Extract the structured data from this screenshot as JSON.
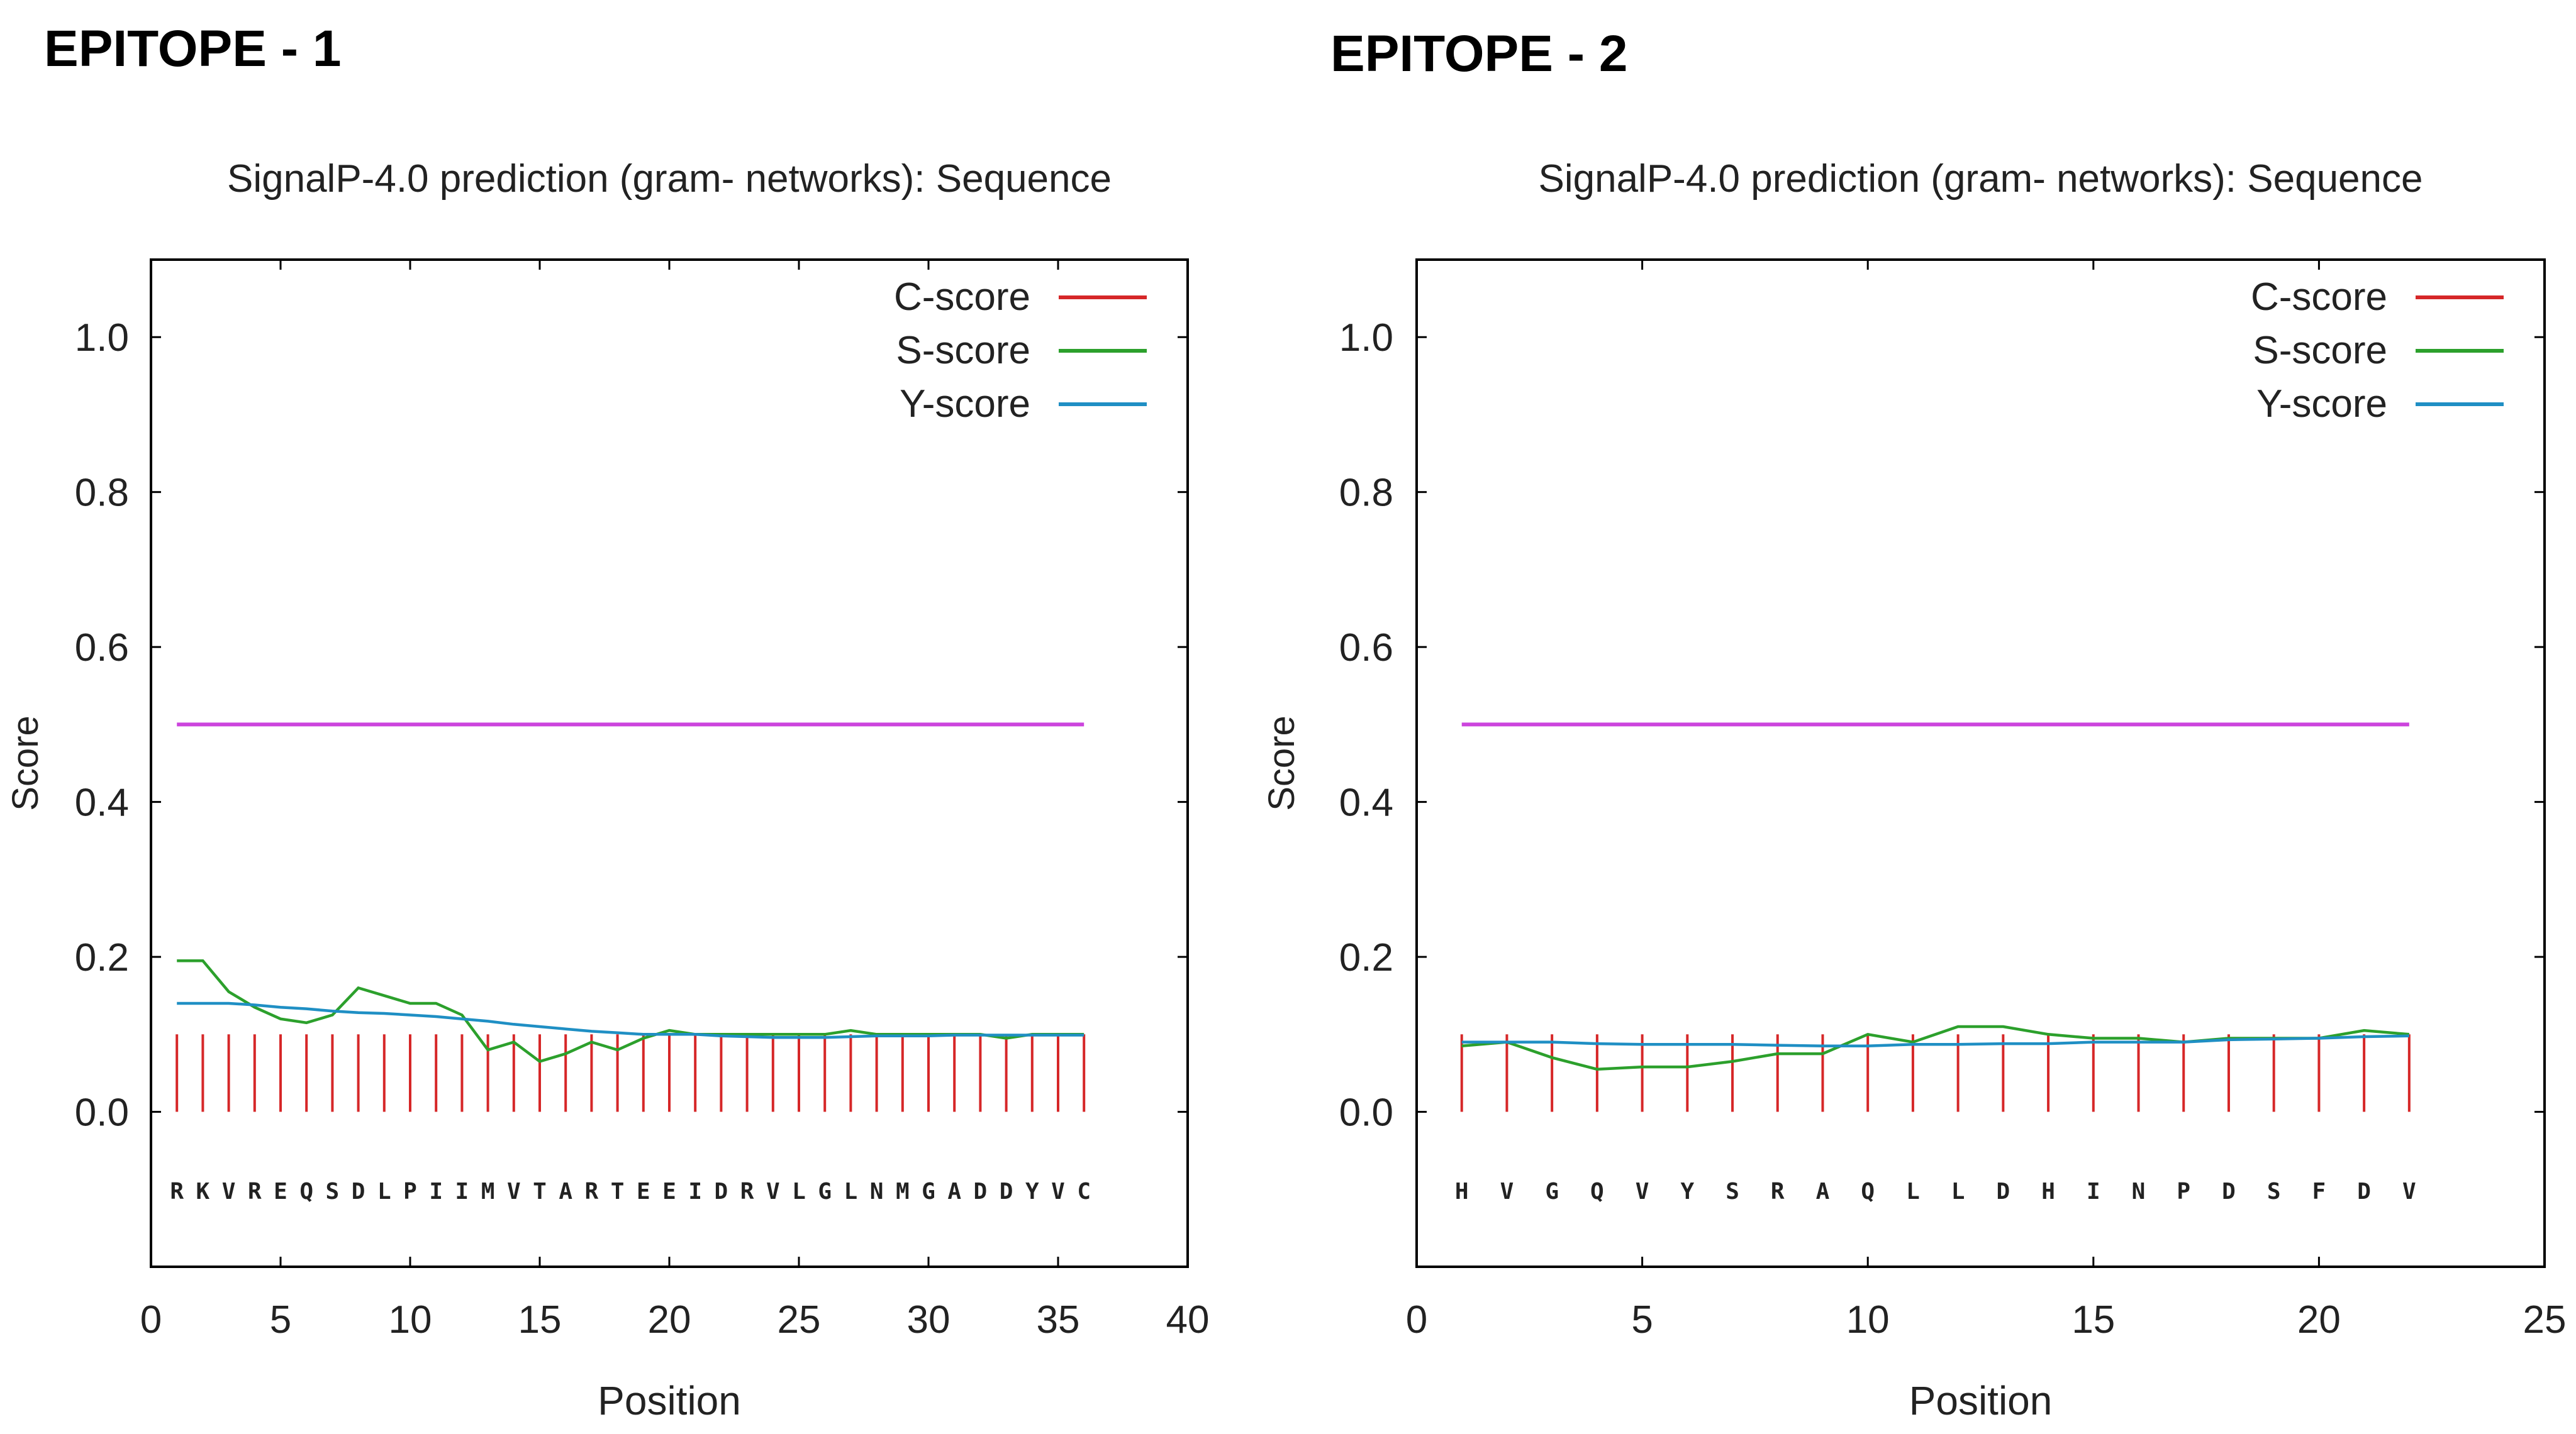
{
  "colors": {
    "c_score": "#d62728",
    "s_score": "#2ca02c",
    "y_score": "#1f8fc4",
    "threshold": "#cc44dd",
    "axis": "#000000"
  },
  "chart_data": [
    {
      "type": "line",
      "heading": "EPITOPE - 1",
      "title": "SignalP-4.0 prediction (gram- networks): Sequence",
      "xlabel": "Position",
      "ylabel": "Score",
      "xlim": [
        0,
        40
      ],
      "ylim": [
        -0.2,
        1.1
      ],
      "xticks": [
        0,
        5,
        10,
        15,
        20,
        25,
        30,
        35,
        40
      ],
      "yticks": [
        0.0,
        0.2,
        0.4,
        0.6,
        0.8,
        1.0
      ],
      "ytick_labels": [
        "0.0",
        "0.2",
        "0.4",
        "0.6",
        "0.8",
        "1.0"
      ],
      "threshold": 0.5,
      "legend_position": "top-right",
      "legend": [
        "C-score",
        "S-score",
        "Y-score"
      ],
      "sequence": [
        "R",
        "K",
        "V",
        "R",
        "E",
        "Q",
        "S",
        "D",
        "L",
        "P",
        "I",
        "I",
        "M",
        "V",
        "T",
        "A",
        "R",
        "T",
        "E",
        "E",
        "I",
        "D",
        "R",
        "V",
        "L",
        "G",
        "L",
        "N",
        "M",
        "G",
        "A",
        "D",
        "D",
        "Y",
        "V",
        "C"
      ],
      "series": [
        {
          "name": "C-score",
          "values": [
            0.1,
            0.1,
            0.1,
            0.1,
            0.1,
            0.1,
            0.1,
            0.1,
            0.1,
            0.1,
            0.1,
            0.1,
            0.1,
            0.1,
            0.1,
            0.1,
            0.1,
            0.1,
            0.1,
            0.1,
            0.1,
            0.1,
            0.1,
            0.1,
            0.1,
            0.1,
            0.1,
            0.1,
            0.1,
            0.1,
            0.1,
            0.1,
            0.1,
            0.1,
            0.1,
            0.1
          ]
        },
        {
          "name": "S-score",
          "values": [
            0.195,
            0.195,
            0.155,
            0.135,
            0.12,
            0.115,
            0.125,
            0.16,
            0.15,
            0.14,
            0.14,
            0.125,
            0.08,
            0.09,
            0.065,
            0.075,
            0.09,
            0.08,
            0.095,
            0.105,
            0.1,
            0.1,
            0.1,
            0.1,
            0.1,
            0.1,
            0.105,
            0.1,
            0.1,
            0.1,
            0.1,
            0.1,
            0.095,
            0.1,
            0.1,
            0.1
          ]
        },
        {
          "name": "Y-score",
          "values": [
            0.14,
            0.14,
            0.14,
            0.138,
            0.135,
            0.133,
            0.13,
            0.128,
            0.127,
            0.125,
            0.123,
            0.12,
            0.117,
            0.113,
            0.11,
            0.107,
            0.104,
            0.102,
            0.1,
            0.1,
            0.1,
            0.098,
            0.097,
            0.096,
            0.096,
            0.096,
            0.097,
            0.098,
            0.098,
            0.098,
            0.099,
            0.099,
            0.099,
            0.099,
            0.099,
            0.099
          ]
        }
      ]
    },
    {
      "type": "line",
      "heading": "EPITOPE - 2",
      "title": "SignalP-4.0 prediction (gram- networks): Sequence",
      "xlabel": "Position",
      "ylabel": "Score",
      "xlim": [
        0,
        25
      ],
      "ylim": [
        -0.2,
        1.1
      ],
      "xticks": [
        0,
        5,
        10,
        15,
        20,
        25
      ],
      "yticks": [
        0.0,
        0.2,
        0.4,
        0.6,
        0.8,
        1.0
      ],
      "ytick_labels": [
        "0.0",
        "0.2",
        "0.4",
        "0.6",
        "0.8",
        "1.0"
      ],
      "threshold": 0.5,
      "legend_position": "top-right",
      "legend": [
        "C-score",
        "S-score",
        "Y-score"
      ],
      "sequence": [
        "H",
        "V",
        "G",
        "Q",
        "V",
        "Y",
        "S",
        "R",
        "A",
        "Q",
        "L",
        "L",
        "D",
        "H",
        "I",
        "N",
        "P",
        "D",
        "S",
        "F",
        "D",
        "V"
      ],
      "series": [
        {
          "name": "C-score",
          "values": [
            0.1,
            0.1,
            0.1,
            0.1,
            0.1,
            0.1,
            0.1,
            0.1,
            0.1,
            0.1,
            0.1,
            0.1,
            0.1,
            0.1,
            0.1,
            0.1,
            0.1,
            0.1,
            0.1,
            0.1,
            0.1,
            0.1
          ]
        },
        {
          "name": "S-score",
          "values": [
            0.085,
            0.09,
            0.07,
            0.055,
            0.058,
            0.058,
            0.065,
            0.075,
            0.075,
            0.1,
            0.09,
            0.11,
            0.11,
            0.1,
            0.095,
            0.095,
            0.09,
            0.095,
            0.095,
            0.095,
            0.105,
            0.1
          ]
        },
        {
          "name": "Y-score",
          "values": [
            0.09,
            0.09,
            0.09,
            0.088,
            0.087,
            0.087,
            0.087,
            0.086,
            0.085,
            0.085,
            0.087,
            0.087,
            0.088,
            0.088,
            0.09,
            0.09,
            0.09,
            0.093,
            0.094,
            0.095,
            0.097,
            0.098
          ]
        }
      ]
    }
  ]
}
